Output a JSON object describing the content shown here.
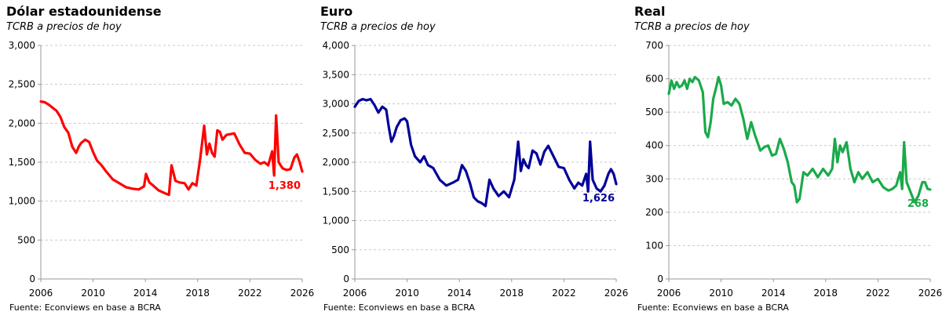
{
  "chart_data": [
    {
      "type": "line",
      "title": "Dólar estadounidense",
      "subtitle": "TCRB a precios de hoy",
      "source": "Fuente: Econviews en base a BCRA",
      "color": "#ff0000",
      "ylim": [
        0,
        3000
      ],
      "yticks": [
        0,
        500,
        1000,
        1500,
        2000,
        2500,
        3000
      ],
      "ytick_labels": [
        "0",
        "500",
        "1,000",
        "1,500",
        "2,000",
        "2,500",
        "3,000"
      ],
      "xlim": [
        2006,
        2026
      ],
      "xticks": [
        2006,
        2010,
        2014,
        2018,
        2022,
        2026
      ],
      "xtick_labels": [
        "2006",
        "2010",
        "2014",
        "2018",
        "2022",
        "2026"
      ],
      "last_value_label": "1,380",
      "series": [
        {
          "x": [
            2006.0,
            2006.3,
            2006.6,
            2006.9,
            2007.2,
            2007.5,
            2007.8,
            2008.1,
            2008.4,
            2008.7,
            2008.9,
            2009.1,
            2009.4,
            2009.7,
            2010.0,
            2010.3,
            2010.6,
            2011.0,
            2011.5,
            2012.0,
            2012.5,
            2013.0,
            2013.5,
            2013.9,
            2014.05,
            2014.3,
            2014.6,
            2015.0,
            2015.5,
            2015.8,
            2016.0,
            2016.3,
            2016.6,
            2017.0,
            2017.3,
            2017.6,
            2017.9,
            2018.2,
            2018.5,
            2018.7,
            2018.9,
            2019.1,
            2019.3,
            2019.5,
            2019.7,
            2019.9,
            2020.2,
            2020.5,
            2020.8,
            2021.2,
            2021.6,
            2022.0,
            2022.4,
            2022.8,
            2023.1,
            2023.4,
            2023.7,
            2023.85,
            2024.0,
            2024.2,
            2024.5,
            2024.8,
            2025.1,
            2025.4,
            2025.6,
            2025.8,
            2026.0
          ],
          "y": [
            2280,
            2270,
            2240,
            2200,
            2160,
            2080,
            1950,
            1880,
            1700,
            1620,
            1700,
            1750,
            1790,
            1760,
            1630,
            1520,
            1470,
            1380,
            1280,
            1230,
            1180,
            1160,
            1150,
            1190,
            1350,
            1240,
            1200,
            1140,
            1100,
            1080,
            1460,
            1260,
            1240,
            1230,
            1150,
            1230,
            1200,
            1550,
            1970,
            1600,
            1740,
            1620,
            1570,
            1910,
            1890,
            1790,
            1850,
            1860,
            1870,
            1730,
            1620,
            1610,
            1530,
            1480,
            1500,
            1460,
            1640,
            1330,
            2100,
            1500,
            1420,
            1400,
            1410,
            1560,
            1600,
            1500,
            1380
          ]
        }
      ]
    },
    {
      "type": "line",
      "title": "Euro",
      "subtitle": "TCRB a precios de hoy",
      "source": "Fuente: Econviews en base a BCRA",
      "color": "#00009a",
      "ylim": [
        0,
        4000
      ],
      "yticks": [
        0,
        500,
        1000,
        1500,
        2000,
        2500,
        3000,
        3500,
        4000
      ],
      "ytick_labels": [
        "0",
        "500",
        "1,000",
        "1,500",
        "2,000",
        "2,500",
        "3,000",
        "3,500",
        "4,000"
      ],
      "xlim": [
        2006,
        2026
      ],
      "xticks": [
        2006,
        2010,
        2014,
        2018,
        2022,
        2026
      ],
      "xtick_labels": [
        "2006",
        "2010",
        "2014",
        "2018",
        "2022",
        "2026"
      ],
      "last_value_label": "1,626",
      "series": [
        {
          "x": [
            2006.0,
            2006.3,
            2006.6,
            2006.9,
            2007.2,
            2007.5,
            2007.8,
            2008.1,
            2008.4,
            2008.6,
            2008.8,
            2009.0,
            2009.2,
            2009.5,
            2009.8,
            2010.0,
            2010.3,
            2010.6,
            2011.0,
            2011.3,
            2011.6,
            2012.0,
            2012.5,
            2013.0,
            2013.5,
            2013.9,
            2014.2,
            2014.5,
            2014.8,
            2015.1,
            2015.4,
            2015.7,
            2016.0,
            2016.3,
            2016.6,
            2017.0,
            2017.4,
            2017.8,
            2018.2,
            2018.5,
            2018.7,
            2018.9,
            2019.1,
            2019.3,
            2019.6,
            2019.9,
            2020.2,
            2020.5,
            2020.8,
            2021.2,
            2021.6,
            2022.0,
            2022.4,
            2022.8,
            2023.1,
            2023.4,
            2023.7,
            2023.85,
            2024.0,
            2024.2,
            2024.5,
            2024.8,
            2025.1,
            2025.4,
            2025.6,
            2025.8,
            2026.0
          ],
          "y": [
            2950,
            3050,
            3080,
            3060,
            3080,
            2980,
            2850,
            2950,
            2900,
            2600,
            2350,
            2450,
            2600,
            2720,
            2750,
            2700,
            2300,
            2100,
            2000,
            2100,
            1950,
            1900,
            1700,
            1600,
            1650,
            1700,
            1950,
            1850,
            1650,
            1400,
            1330,
            1300,
            1250,
            1700,
            1550,
            1420,
            1500,
            1400,
            1700,
            2350,
            1850,
            2050,
            1950,
            1900,
            2200,
            2150,
            1960,
            2180,
            2280,
            2100,
            1920,
            1900,
            1700,
            1550,
            1650,
            1600,
            1800,
            1500,
            2350,
            1700,
            1550,
            1500,
            1600,
            1800,
            1880,
            1800,
            1626
          ]
        }
      ]
    },
    {
      "type": "line",
      "title": "Real",
      "subtitle": "TCRB a precios de hoy",
      "source": "Fuente: Econviews en base a BCRA",
      "color": "#1aaa4a",
      "ylim": [
        0,
        700
      ],
      "yticks": [
        0,
        100,
        200,
        300,
        400,
        500,
        600,
        700
      ],
      "ytick_labels": [
        "0",
        "100",
        "200",
        "300",
        "400",
        "500",
        "600",
        "700"
      ],
      "xlim": [
        2006,
        2026
      ],
      "xticks": [
        2006,
        2010,
        2014,
        2018,
        2022,
        2026
      ],
      "xtick_labels": [
        "2006",
        "2010",
        "2014",
        "2018",
        "2022",
        "2026"
      ],
      "last_value_label": "268",
      "series": [
        {
          "x": [
            2006.0,
            2006.2,
            2006.4,
            2006.6,
            2006.8,
            2007.0,
            2007.2,
            2007.4,
            2007.6,
            2007.8,
            2008.0,
            2008.3,
            2008.6,
            2008.8,
            2009.0,
            2009.2,
            2009.4,
            2009.6,
            2009.8,
            2010.0,
            2010.2,
            2010.5,
            2010.8,
            2011.1,
            2011.4,
            2011.7,
            2012.0,
            2012.3,
            2012.6,
            2013.0,
            2013.3,
            2013.6,
            2013.9,
            2014.2,
            2014.5,
            2014.8,
            2015.1,
            2015.4,
            2015.6,
            2015.8,
            2016.0,
            2016.3,
            2016.6,
            2017.0,
            2017.4,
            2017.8,
            2018.2,
            2018.5,
            2018.7,
            2018.9,
            2019.1,
            2019.3,
            2019.6,
            2019.9,
            2020.2,
            2020.5,
            2020.8,
            2021.2,
            2021.6,
            2022.0,
            2022.4,
            2022.8,
            2023.1,
            2023.4,
            2023.7,
            2023.85,
            2024.0,
            2024.2,
            2024.5,
            2024.8,
            2025.1,
            2025.4,
            2025.6,
            2025.8,
            2026.0
          ],
          "y": [
            555,
            595,
            570,
            590,
            575,
            580,
            595,
            570,
            600,
            590,
            605,
            595,
            560,
            440,
            425,
            470,
            540,
            570,
            605,
            580,
            525,
            530,
            520,
            540,
            525,
            480,
            420,
            470,
            430,
            385,
            395,
            400,
            370,
            375,
            420,
            390,
            350,
            290,
            280,
            230,
            240,
            320,
            310,
            330,
            305,
            330,
            310,
            330,
            420,
            350,
            400,
            380,
            410,
            330,
            290,
            320,
            300,
            320,
            290,
            300,
            275,
            265,
            270,
            280,
            320,
            270,
            410,
            290,
            260,
            230,
            250,
            290,
            290,
            270,
            268
          ]
        }
      ]
    }
  ]
}
